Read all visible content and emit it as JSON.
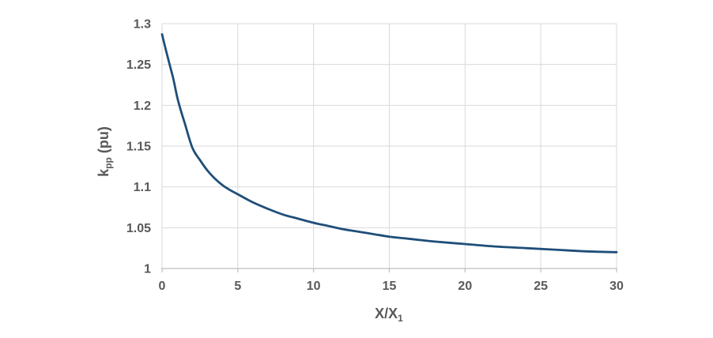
{
  "chart_data": {
    "type": "line",
    "title": "",
    "xlabel_main": "X/X",
    "xlabel_sub": "1",
    "ylabel_main": "k",
    "ylabel_sub": "pp",
    "ylabel_rest": " (pu)",
    "xlim": [
      0,
      30
    ],
    "ylim": [
      1.0,
      1.3
    ],
    "x_ticks": [
      0,
      5,
      10,
      15,
      20,
      25,
      30
    ],
    "x_tick_labels": [
      "0",
      "5",
      "10",
      "15",
      "20",
      "25",
      "30"
    ],
    "y_ticks": [
      1.0,
      1.05,
      1.1,
      1.15,
      1.2,
      1.25,
      1.3
    ],
    "y_tick_labels": [
      "1",
      "1.05",
      "1.1",
      "1.15",
      "1.2",
      "1.25",
      "1.3"
    ],
    "grid": true,
    "legend": "none",
    "series": [
      {
        "name": "kpp",
        "color": "#1F4E79",
        "points": [
          [
            0,
            1.287
          ],
          [
            0.25,
            1.268
          ],
          [
            0.5,
            1.25
          ],
          [
            0.75,
            1.232
          ],
          [
            1,
            1.21
          ],
          [
            1.25,
            1.193
          ],
          [
            1.5,
            1.178
          ],
          [
            2,
            1.148
          ],
          [
            2.5,
            1.133
          ],
          [
            3,
            1.12
          ],
          [
            3.5,
            1.11
          ],
          [
            4,
            1.102
          ],
          [
            4.5,
            1.096
          ],
          [
            5,
            1.091
          ],
          [
            6,
            1.081
          ],
          [
            7,
            1.073
          ],
          [
            8,
            1.066
          ],
          [
            9,
            1.061
          ],
          [
            10,
            1.056
          ],
          [
            11,
            1.052
          ],
          [
            12,
            1.048
          ],
          [
            13,
            1.045
          ],
          [
            14,
            1.042
          ],
          [
            15,
            1.039
          ],
          [
            16,
            1.037
          ],
          [
            17,
            1.035
          ],
          [
            18,
            1.033
          ],
          [
            20,
            1.03
          ],
          [
            22,
            1.027
          ],
          [
            24,
            1.025
          ],
          [
            26,
            1.023
          ],
          [
            28,
            1.021
          ],
          [
            30,
            1.02
          ]
        ]
      }
    ],
    "colors": {
      "line": "#1F4E79",
      "gridline": "#D9D9D9",
      "axis_line": "#BFBFBF",
      "tick_label": "#595959",
      "axis_title": "#595959",
      "background": "#FFFFFF"
    }
  }
}
